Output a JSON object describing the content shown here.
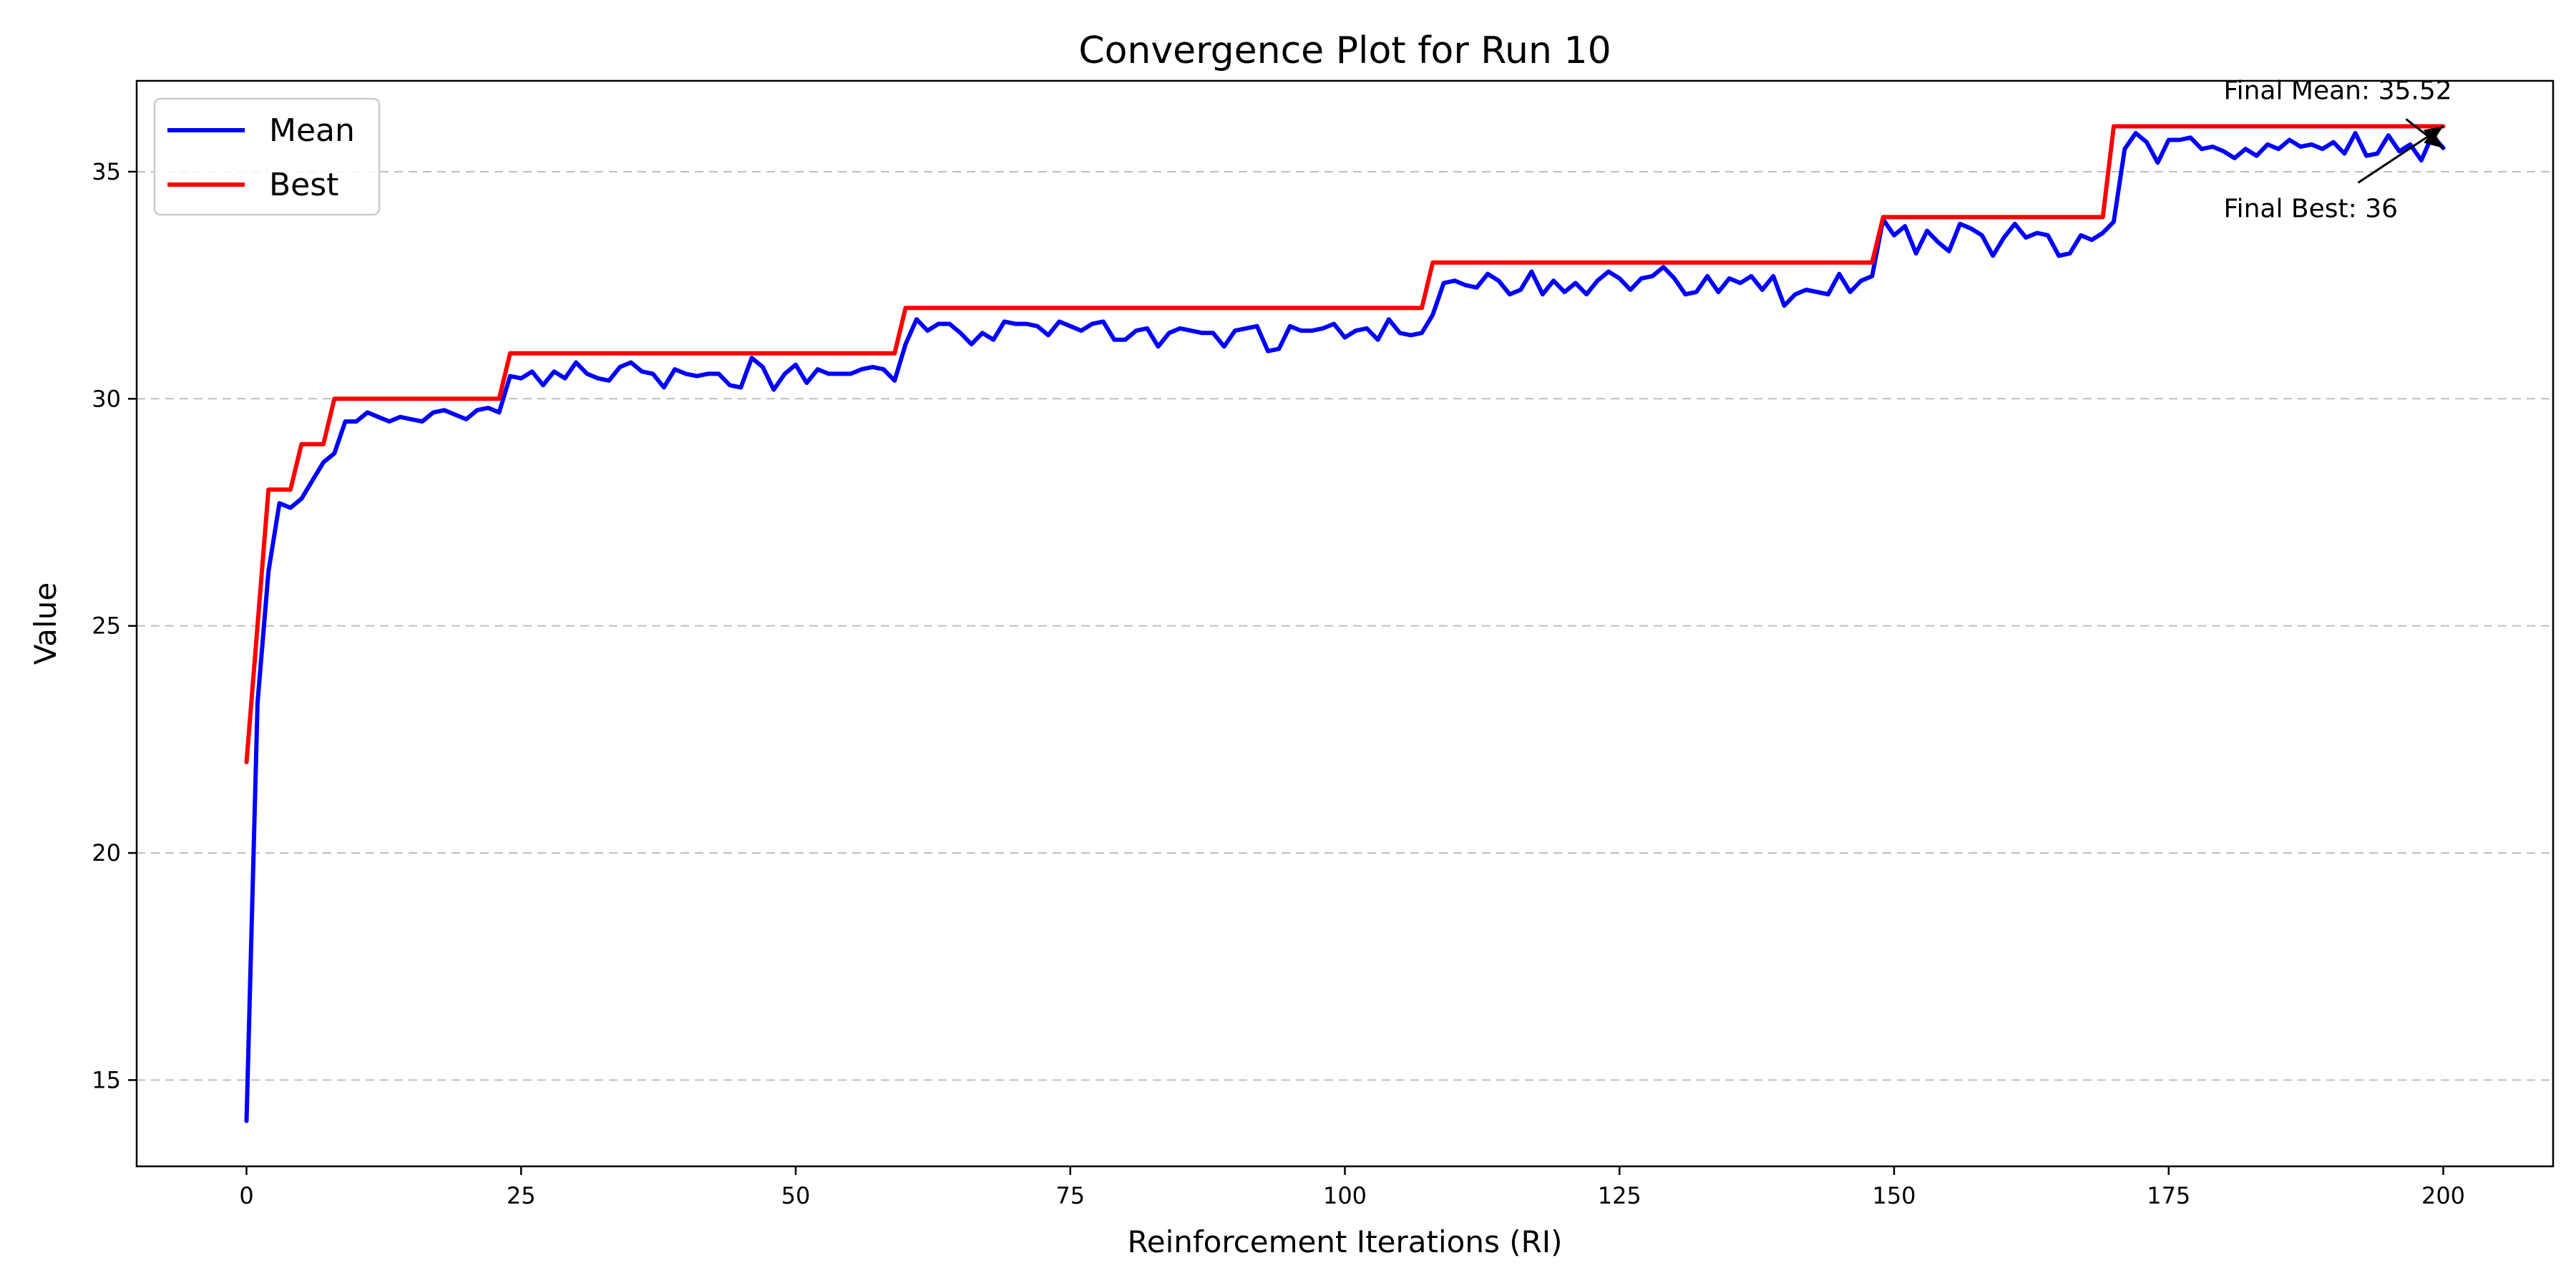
{
  "chart_data": {
    "type": "line",
    "title": "Convergence Plot for Run 10",
    "xlabel": "Reinforcement Iterations (RI)",
    "ylabel": "Value",
    "xlim": [
      -10,
      210
    ],
    "ylim": [
      13.1,
      37.0
    ],
    "xticks": [
      0,
      25,
      50,
      75,
      100,
      125,
      150,
      175,
      200
    ],
    "yticks": [
      15,
      20,
      25,
      30,
      35
    ],
    "grid": {
      "y": true,
      "x": false,
      "style": "dashed"
    },
    "legend_position": "top-left",
    "series": [
      {
        "name": "Mean",
        "color": "#0000ff",
        "x": [
          0,
          1,
          2,
          3,
          4,
          5,
          6,
          7,
          8,
          9,
          10,
          11,
          12,
          13,
          14,
          15,
          16,
          17,
          18,
          19,
          20,
          21,
          22,
          23,
          24,
          25,
          26,
          27,
          28,
          29,
          30,
          31,
          32,
          33,
          34,
          35,
          36,
          37,
          38,
          39,
          40,
          41,
          42,
          43,
          44,
          45,
          46,
          47,
          48,
          49,
          50,
          51,
          52,
          53,
          54,
          55,
          56,
          57,
          58,
          59,
          60,
          61,
          62,
          63,
          64,
          65,
          66,
          67,
          68,
          69,
          70,
          71,
          72,
          73,
          74,
          75,
          76,
          77,
          78,
          79,
          80,
          81,
          82,
          83,
          84,
          85,
          86,
          87,
          88,
          89,
          90,
          91,
          92,
          93,
          94,
          95,
          96,
          97,
          98,
          99,
          100,
          101,
          102,
          103,
          104,
          105,
          106,
          107,
          108,
          109,
          110,
          111,
          112,
          113,
          114,
          115,
          116,
          117,
          118,
          119,
          120,
          121,
          122,
          123,
          124,
          125,
          126,
          127,
          128,
          129,
          130,
          131,
          132,
          133,
          134,
          135,
          136,
          137,
          138,
          139,
          140,
          141,
          142,
          143,
          144,
          145,
          146,
          147,
          148,
          149,
          150,
          151,
          152,
          153,
          154,
          155,
          156,
          157,
          158,
          159,
          160,
          161,
          162,
          163,
          164,
          165,
          166,
          167,
          168,
          169,
          170,
          171,
          172,
          173,
          174,
          175,
          176,
          177,
          178,
          179,
          180,
          181,
          182,
          183,
          184,
          185,
          186,
          187,
          188,
          189,
          190,
          191,
          192,
          193,
          194,
          195,
          196,
          197,
          198,
          199,
          200
        ],
        "y": [
          14.1,
          23.3,
          26.2,
          27.7,
          27.6,
          27.8,
          28.2,
          28.6,
          28.8,
          29.5,
          29.5,
          29.7,
          29.6,
          29.5,
          29.6,
          29.55,
          29.5,
          29.7,
          29.75,
          29.65,
          29.55,
          29.75,
          29.8,
          29.7,
          30.5,
          30.45,
          30.6,
          30.3,
          30.6,
          30.45,
          30.8,
          30.55,
          30.45,
          30.4,
          30.7,
          30.8,
          30.6,
          30.55,
          30.25,
          30.65,
          30.55,
          30.5,
          30.55,
          30.55,
          30.3,
          30.25,
          30.9,
          30.7,
          30.2,
          30.55,
          30.75,
          30.35,
          30.65,
          30.55,
          30.55,
          30.55,
          30.65,
          30.7,
          30.65,
          30.4,
          31.2,
          31.75,
          31.5,
          31.65,
          31.65,
          31.45,
          31.2,
          31.45,
          31.3,
          31.7,
          31.65,
          31.65,
          31.6,
          31.4,
          31.7,
          31.6,
          31.5,
          31.65,
          31.7,
          31.3,
          31.3,
          31.5,
          31.55,
          31.15,
          31.45,
          31.55,
          31.5,
          31.45,
          31.45,
          31.15,
          31.5,
          31.55,
          31.6,
          31.05,
          31.1,
          31.6,
          31.5,
          31.5,
          31.55,
          31.65,
          31.35,
          31.5,
          31.55,
          31.3,
          31.75,
          31.45,
          31.4,
          31.45,
          31.85,
          32.55,
          32.6,
          32.5,
          32.45,
          32.75,
          32.6,
          32.3,
          32.4,
          32.8,
          32.3,
          32.6,
          32.35,
          32.55,
          32.3,
          32.6,
          32.8,
          32.65,
          32.4,
          32.65,
          32.7,
          32.9,
          32.65,
          32.3,
          32.35,
          32.7,
          32.35,
          32.65,
          32.55,
          32.7,
          32.4,
          32.7,
          32.05,
          32.3,
          32.4,
          32.35,
          32.3,
          32.75,
          32.35,
          32.6,
          32.7,
          33.95,
          33.6,
          33.8,
          33.2,
          33.7,
          33.45,
          33.25,
          33.85,
          33.75,
          33.6,
          33.15,
          33.55,
          33.85,
          33.55,
          33.65,
          33.6,
          33.15,
          33.2,
          33.6,
          33.5,
          33.65,
          33.9,
          35.5,
          35.85,
          35.65,
          35.2,
          35.7,
          35.7,
          35.75,
          35.5,
          35.55,
          35.45,
          35.3,
          35.5,
          35.35,
          35.6,
          35.5,
          35.7,
          35.55,
          35.6,
          35.5,
          35.65,
          35.4,
          35.85,
          35.35,
          35.4,
          35.8,
          35.45,
          35.6,
          35.25,
          35.8,
          35.52
        ]
      },
      {
        "name": "Best",
        "color": "#ff0000",
        "x": [
          0,
          2,
          4,
          5,
          7,
          8,
          23,
          24,
          59,
          60,
          107,
          108,
          148,
          149,
          169,
          170,
          200
        ],
        "y": [
          22,
          28,
          28,
          29,
          29,
          30,
          30,
          31,
          31,
          32,
          32,
          33,
          33,
          34,
          34,
          36,
          36
        ],
        "step": true
      }
    ],
    "annotations": [
      {
        "text": "Final Mean: 35.52",
        "xy": [
          200,
          35.52
        ],
        "text_xy": [
          180,
          36.6
        ]
      },
      {
        "text": "Final Best: 36",
        "xy": [
          200,
          36
        ],
        "text_xy": [
          180,
          34.0
        ]
      }
    ]
  }
}
